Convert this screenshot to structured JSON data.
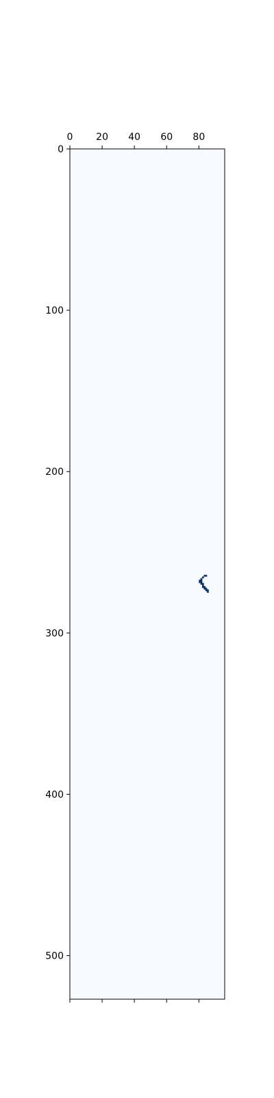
{
  "chart_data": {
    "type": "heatmap",
    "title": "",
    "xlabel": "",
    "ylabel": "",
    "xlim": [
      0,
      96
    ],
    "ylim": [
      527,
      0
    ],
    "x_ticks_top": [
      0,
      20,
      40,
      60,
      80
    ],
    "y_ticks": [
      0,
      100,
      200,
      300,
      400,
      500
    ],
    "x_tick_labels": [
      "0",
      "20",
      "40",
      "60",
      "80"
    ],
    "y_tick_labels": [
      "0",
      "100",
      "200",
      "300",
      "400",
      "500"
    ],
    "bottom_ticks_unlabeled": true,
    "colormap": "Blues",
    "background_color": "#f7fbff",
    "mark_color": "#08306b",
    "grid": false,
    "x_tick_position": "top",
    "nonzero_cells": [
      {
        "x": 83,
        "y": 264
      },
      {
        "x": 84,
        "y": 264
      },
      {
        "x": 82,
        "y": 265
      },
      {
        "x": 81,
        "y": 266
      },
      {
        "x": 81,
        "y": 267
      },
      {
        "x": 80,
        "y": 267
      },
      {
        "x": 80,
        "y": 268
      },
      {
        "x": 81,
        "y": 268
      },
      {
        "x": 81,
        "y": 269
      },
      {
        "x": 82,
        "y": 269
      },
      {
        "x": 82,
        "y": 270
      },
      {
        "x": 82,
        "y": 271
      },
      {
        "x": 83,
        "y": 271
      },
      {
        "x": 83,
        "y": 272
      },
      {
        "x": 84,
        "y": 272
      },
      {
        "x": 84,
        "y": 273
      },
      {
        "x": 85,
        "y": 273
      },
      {
        "x": 85,
        "y": 274
      }
    ]
  }
}
